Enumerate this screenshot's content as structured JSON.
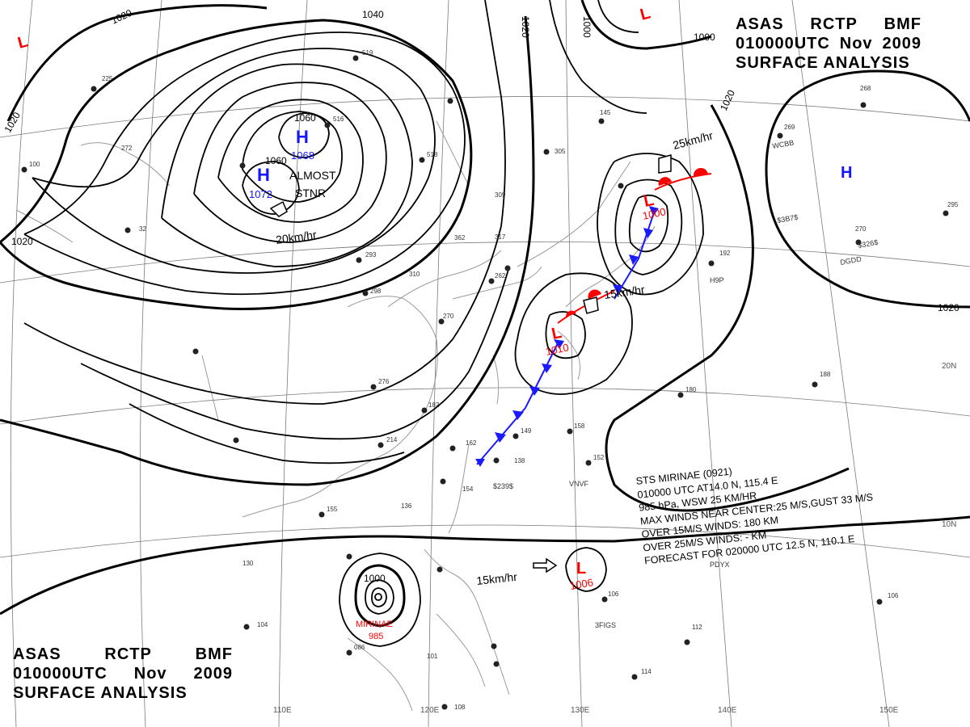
{
  "header": {
    "agency": [
      "ASAS",
      "RCTP",
      "BMF"
    ],
    "time": [
      "010000UTC",
      "Nov",
      "2009"
    ],
    "title": "SURFACE ANALYSIS"
  },
  "typhoon_info": {
    "name_line": "STS  MIRINAE  (0921)",
    "position_line": "010000 UTC  AT14.0 N, 115.4 E",
    "pressure_line": "985 hPa, WSW  25 KM/HR",
    "max_winds_line": "MAX WINDS NEAR CENTER:25 M/S,GUST 33 M/S",
    "r15_line": "OVER 15M/S WINDS: 180 KM",
    "r25_line": "OVER 25M/S WINDS: - KM",
    "forecast_line": "FORECAST FOR 020000 UTC 12.5 N, 110.1 E"
  },
  "pressure_systems": {
    "high_main": {
      "symbol": "H",
      "value": "1068"
    },
    "high_second": {
      "symbol": "H",
      "value": "1072"
    },
    "high_east": {
      "symbol": "H"
    },
    "low_north": {
      "symbol": "L",
      "value": "1000"
    },
    "low_mid": {
      "symbol": "L",
      "value": "1010"
    },
    "low_pacific": {
      "symbol": "L",
      "value": "1006"
    },
    "typhoon": {
      "name": "MIRINAE",
      "value": "985"
    },
    "low_top": {
      "symbol": "L"
    },
    "low_left": {
      "symbol": "L"
    }
  },
  "motion_labels": {
    "high_motion": "20km/hr",
    "high_stnr": [
      "ALMOST",
      "STNR"
    ],
    "low_north_motion": "25km/hr",
    "low_mid_motion": "15km/hr",
    "pacific_motion": "15km/hr"
  },
  "isobar_labels": {
    "i1020_nw": "1020",
    "i1020_w": "1020",
    "i1020_w2": "1020",
    "i1040": "1040",
    "i1060_a": "1060",
    "i1060_b": "1060",
    "i1020_top": "1020",
    "i1000_top": "1000",
    "i1000_ne": "1000",
    "i1020_ne": "1020",
    "i1020_e": "1020",
    "i1000_ty": "1000"
  },
  "grid_labels": {
    "lon": [
      "110E",
      "120E",
      "130E",
      "140E",
      "150E"
    ],
    "lat": [
      "20N",
      "10N"
    ]
  },
  "station_codes": [
    "WCBB",
    "$3B7$",
    "$326$",
    "DGDD",
    "H9P",
    "VNVF",
    "PDYX",
    "3FIGS",
    "$239$"
  ],
  "colors": {
    "isobar": "#000000",
    "grid": "#777777",
    "coast": "#999999",
    "high": "#1515ff",
    "low": "#ff0000",
    "cold_front": "#1a1aff",
    "warm_front": "#ff0000"
  }
}
